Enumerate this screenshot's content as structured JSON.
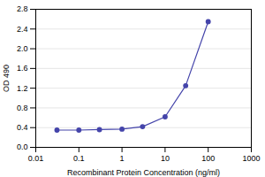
{
  "chart_data": {
    "type": "line",
    "x": [
      0.031,
      0.1,
      0.3,
      1.0,
      3.0,
      10.0,
      30.0,
      100.0
    ],
    "values": [
      0.35,
      0.35,
      0.36,
      0.37,
      0.42,
      0.62,
      1.25,
      2.55
    ],
    "color": "#4444aa",
    "marker": "circle",
    "log": "x",
    "xlim": [
      0.01,
      1000
    ],
    "ylim": [
      0.0,
      2.8
    ],
    "xticks": [
      0.01,
      0.1,
      1,
      10,
      100,
      1000
    ],
    "yticks": [
      {
        "value": 0,
        "label": "0.0"
      },
      0.4,
      0.8,
      1.2,
      1.6,
      {
        "value": 2,
        "label": "2.0"
      },
      2.4,
      2.8
    ],
    "xlabel": "Recombinant Protein Concentration (ng/ml)",
    "ylabel": "OD 490",
    "grid": "y"
  }
}
